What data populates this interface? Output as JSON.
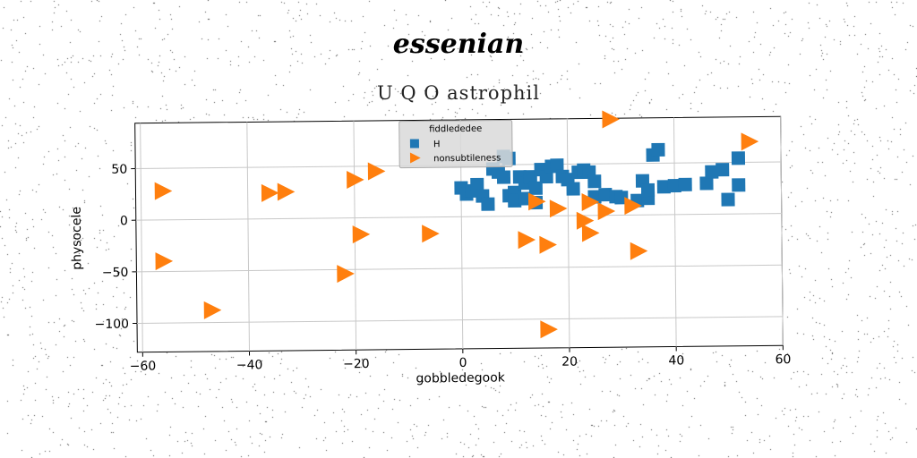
{
  "figure": {
    "suptitle": "essenian",
    "title": "U Q O astrophil"
  },
  "chart_data": {
    "type": "scatter",
    "title": "U Q O astrophil",
    "xlabel": "gobbledegook",
    "ylabel": "physocele",
    "xlim": [
      -61,
      60
    ],
    "ylim": [
      -128,
      94
    ],
    "xticks": [
      -60,
      -40,
      -20,
      0,
      20,
      40,
      60
    ],
    "yticks": [
      50,
      0,
      -50,
      -100
    ],
    "grid": true,
    "legend": {
      "title": "fiddlededee",
      "position": "top-center"
    },
    "series": [
      {
        "name": "H",
        "marker": "square",
        "color": "#1f77b4",
        "points": [
          [
            0,
            28
          ],
          [
            1,
            22
          ],
          [
            2,
            25
          ],
          [
            3,
            31
          ],
          [
            4,
            20
          ],
          [
            5,
            12
          ],
          [
            6,
            46
          ],
          [
            7,
            43
          ],
          [
            8,
            38
          ],
          [
            8,
            58
          ],
          [
            9,
            56
          ],
          [
            9,
            20
          ],
          [
            10,
            23
          ],
          [
            10,
            15
          ],
          [
            11,
            38
          ],
          [
            12,
            32
          ],
          [
            12,
            17
          ],
          [
            13,
            38
          ],
          [
            14,
            27
          ],
          [
            14,
            13
          ],
          [
            15,
            45
          ],
          [
            16,
            38
          ],
          [
            17,
            48
          ],
          [
            18,
            49
          ],
          [
            19,
            38
          ],
          [
            20,
            35
          ],
          [
            21,
            26
          ],
          [
            22,
            42
          ],
          [
            23,
            44
          ],
          [
            24,
            42
          ],
          [
            25,
            33
          ],
          [
            25,
            18
          ],
          [
            27,
            20
          ],
          [
            29,
            18
          ],
          [
            30,
            17
          ],
          [
            33,
            14
          ],
          [
            34,
            33
          ],
          [
            35,
            16
          ],
          [
            35,
            24
          ],
          [
            36,
            58
          ],
          [
            37,
            63
          ],
          [
            38,
            27
          ],
          [
            40,
            28
          ],
          [
            42,
            29
          ],
          [
            46,
            30
          ],
          [
            47,
            41
          ],
          [
            49,
            43
          ],
          [
            50,
            14
          ],
          [
            52,
            28
          ],
          [
            52,
            54
          ]
        ]
      },
      {
        "name": "nonsubtileness",
        "marker": "triangle-right",
        "color": "#ff7f0e",
        "points": [
          [
            -56,
            28
          ],
          [
            -56,
            -40
          ],
          [
            -47,
            -88
          ],
          [
            -36,
            25
          ],
          [
            -33,
            26
          ],
          [
            -22,
            -54
          ],
          [
            -20,
            37
          ],
          [
            -19,
            -16
          ],
          [
            -16,
            45
          ],
          [
            -6,
            -16
          ],
          [
            12,
            -23
          ],
          [
            14,
            14
          ],
          [
            16,
            -28
          ],
          [
            16,
            -110
          ],
          [
            18,
            7
          ],
          [
            23,
            -5
          ],
          [
            24,
            13
          ],
          [
            24,
            -17
          ],
          [
            27,
            4
          ],
          [
            28,
            93
          ],
          [
            32,
            9
          ],
          [
            33,
            -35
          ],
          [
            54,
            70
          ]
        ]
      }
    ]
  }
}
